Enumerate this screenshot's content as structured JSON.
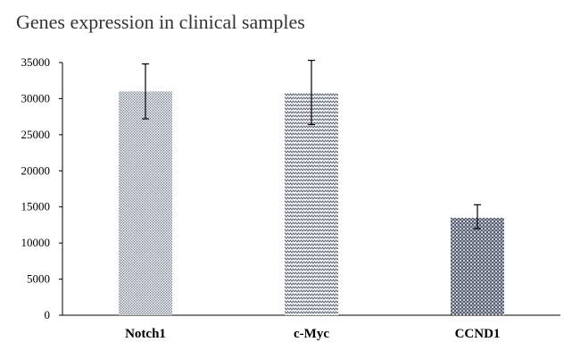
{
  "chart_data": {
    "type": "bar",
    "title": "Genes expression in clinical samples",
    "xlabel": "",
    "ylabel": "",
    "categories": [
      "Notch1",
      "c-Myc",
      "CCND1"
    ],
    "values": [
      31000,
      30800,
      13500
    ],
    "error_low": [
      27200,
      26400,
      12000
    ],
    "error_high": [
      34800,
      35300,
      15300
    ],
    "ylim": [
      0,
      35000
    ],
    "yticks": [
      0,
      5000,
      10000,
      15000,
      20000,
      25000,
      30000,
      35000
    ],
    "grid": false,
    "legend": "none",
    "bar_patterns": [
      "fine-dots",
      "zigzag",
      "diamond-weave"
    ],
    "bar_color": "#5b6478"
  }
}
